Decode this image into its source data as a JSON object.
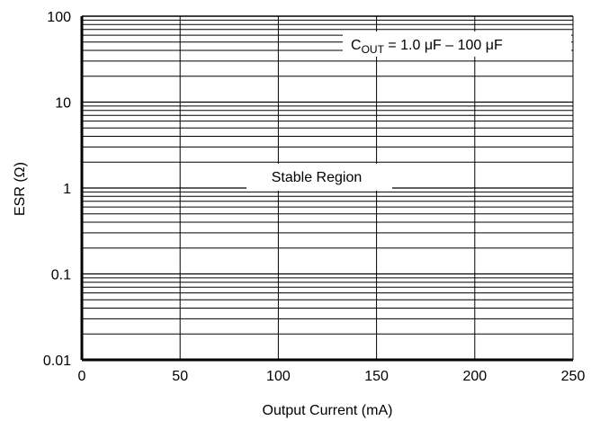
{
  "chart_data": {
    "type": "line",
    "title": "",
    "xlabel": "Output Current (mA)",
    "ylabel": "ESR (Ω)",
    "x_scale": "linear",
    "y_scale": "log",
    "xlim": [
      0,
      250
    ],
    "ylim": [
      0.01,
      100
    ],
    "x_ticks": [
      "0",
      "50",
      "100",
      "150",
      "200",
      "250"
    ],
    "y_ticks": [
      "0.01",
      "0.1",
      "1",
      "10",
      "100"
    ],
    "grid": true,
    "series": [],
    "annotations": {
      "cout": {
        "main": "C",
        "sub": "OUT",
        "rest": " = 1.0 μF – 100 μF"
      },
      "region": "Stable Region"
    }
  }
}
